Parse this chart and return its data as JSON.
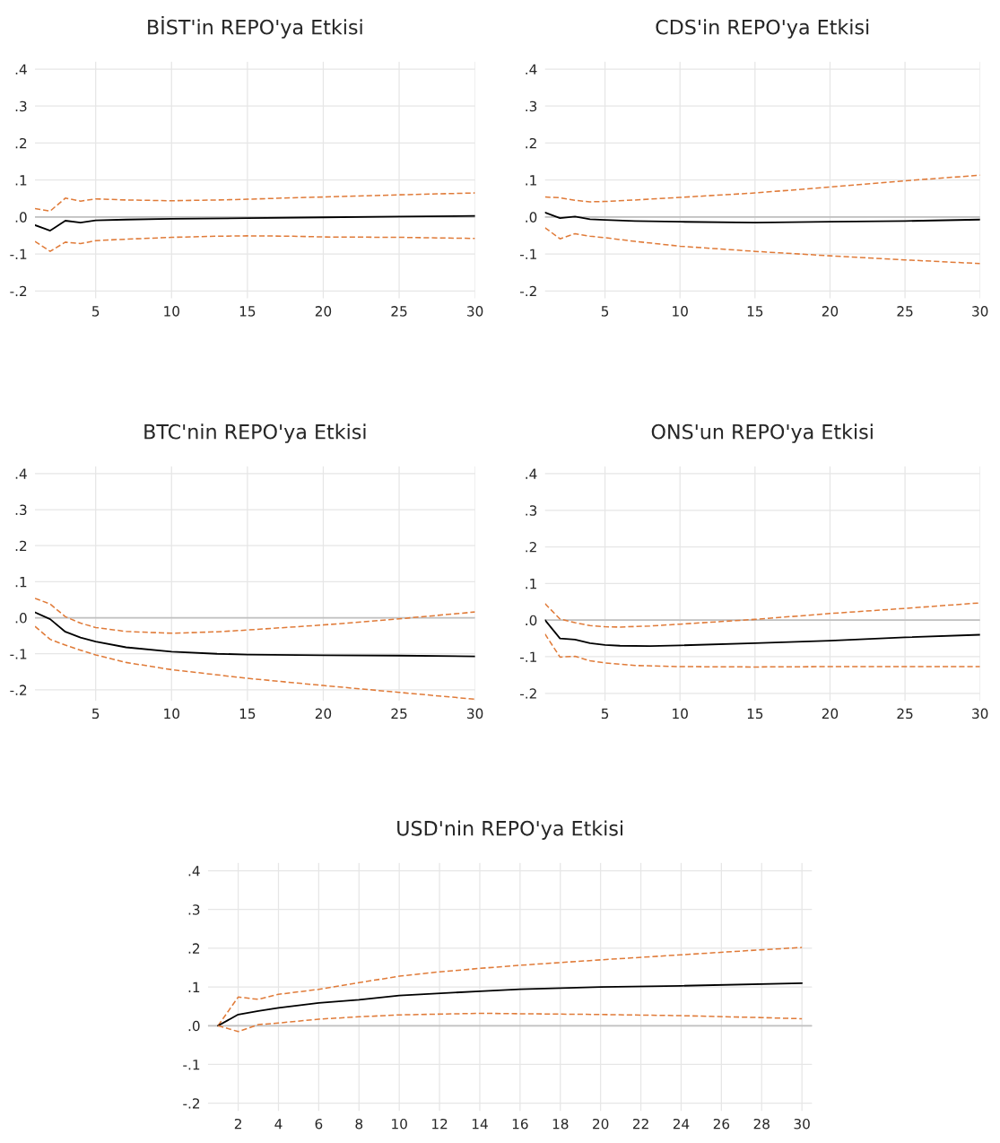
{
  "chart_data": [
    {
      "type": "line",
      "title": "BİST'in REPO'ya Etkisi",
      "xlim": [
        1,
        30
      ],
      "xticks": [
        5,
        10,
        15,
        20,
        25,
        30
      ],
      "ylim": [
        -0.22,
        0.42
      ],
      "yticks": [
        {
          "value": 0.4,
          "label": ".4"
        },
        {
          "value": 0.3,
          "label": ".3"
        },
        {
          "value": 0.2,
          "label": ".2"
        },
        {
          "value": 0.1,
          "label": ".1"
        },
        {
          "value": 0,
          "label": ".0"
        },
        {
          "value": -0.1,
          "label": "-.1"
        },
        {
          "value": -0.2,
          "label": "-.2"
        }
      ],
      "grid": true,
      "ref_lines": [
        {
          "axis": "y",
          "value": 0,
          "color": "#c0c0c0"
        }
      ],
      "series": [
        {
          "color": "#e07b39",
          "line_style": "dashed",
          "x": [
            1,
            2,
            3,
            4,
            5,
            7,
            10,
            13,
            15,
            18,
            20,
            25,
            30
          ],
          "values": [
            0.023,
            0.016,
            0.051,
            0.043,
            0.049,
            0.046,
            0.044,
            0.046,
            0.048,
            0.052,
            0.054,
            0.06,
            0.065
          ]
        },
        {
          "color": "#000000",
          "line_style": "solid",
          "x": [
            1,
            2,
            3,
            4,
            5,
            7,
            10,
            15,
            20,
            25,
            30
          ],
          "values": [
            -0.022,
            -0.037,
            -0.01,
            -0.015,
            -0.009,
            -0.007,
            -0.005,
            -0.003,
            -0.001,
            0.001,
            0.003
          ]
        },
        {
          "color": "#e07b39",
          "line_style": "dashed",
          "x": [
            1,
            2,
            3,
            4,
            5,
            7,
            10,
            13,
            15,
            18,
            20,
            25,
            30
          ],
          "values": [
            -0.066,
            -0.093,
            -0.068,
            -0.072,
            -0.064,
            -0.06,
            -0.055,
            -0.052,
            -0.051,
            -0.052,
            -0.054,
            -0.055,
            -0.058
          ]
        }
      ]
    },
    {
      "type": "line",
      "title": "CDS'in REPO'ya Etkisi",
      "xlim": [
        1,
        30
      ],
      "xticks": [
        5,
        10,
        15,
        20,
        25,
        30
      ],
      "ylim": [
        -0.22,
        0.42
      ],
      "yticks": [
        {
          "value": 0.4,
          "label": ".4"
        },
        {
          "value": 0.3,
          "label": ".3"
        },
        {
          "value": 0.2,
          "label": ".2"
        },
        {
          "value": 0.1,
          "label": ".1"
        },
        {
          "value": 0,
          "label": ".0"
        },
        {
          "value": -0.1,
          "label": "-.1"
        },
        {
          "value": -0.2,
          "label": "-.2"
        }
      ],
      "grid": true,
      "ref_lines": [
        {
          "axis": "y",
          "value": 0,
          "color": "#c0c0c0"
        }
      ],
      "series": [
        {
          "color": "#e07b39",
          "line_style": "dashed",
          "x": [
            1,
            2,
            3,
            4,
            5,
            7,
            10,
            15,
            20,
            25,
            30
          ],
          "values": [
            0.054,
            0.052,
            0.045,
            0.041,
            0.042,
            0.046,
            0.053,
            0.065,
            0.081,
            0.098,
            0.113
          ]
        },
        {
          "color": "#000000",
          "line_style": "solid",
          "x": [
            1,
            2,
            3,
            4,
            5,
            7,
            10,
            15,
            20,
            25,
            30
          ],
          "values": [
            0.012,
            -0.003,
            0.001,
            -0.006,
            -0.008,
            -0.011,
            -0.013,
            -0.015,
            -0.013,
            -0.011,
            -0.007
          ]
        },
        {
          "color": "#e07b39",
          "line_style": "dashed",
          "x": [
            1,
            2,
            3,
            4,
            5,
            7,
            10,
            15,
            20,
            25,
            30
          ],
          "values": [
            -0.029,
            -0.059,
            -0.045,
            -0.052,
            -0.056,
            -0.066,
            -0.079,
            -0.093,
            -0.105,
            -0.116,
            -0.126
          ]
        }
      ]
    },
    {
      "type": "line",
      "title": "BTC'nin REPO'ya Etkisi",
      "xlim": [
        1,
        30
      ],
      "xticks": [
        5,
        10,
        15,
        20,
        25,
        30
      ],
      "ylim": [
        -0.23,
        0.42
      ],
      "yticks": [
        {
          "value": 0.4,
          "label": ".4"
        },
        {
          "value": 0.3,
          "label": ".3"
        },
        {
          "value": 0.2,
          "label": ".2"
        },
        {
          "value": 0.1,
          "label": ".1"
        },
        {
          "value": 0,
          "label": ".0"
        },
        {
          "value": -0.1,
          "label": "-.1"
        },
        {
          "value": -0.2,
          "label": "-.2"
        }
      ],
      "grid": true,
      "ref_lines": [
        {
          "axis": "y",
          "value": 0,
          "color": "#c0c0c0"
        }
      ],
      "series": [
        {
          "color": "#e07b39",
          "line_style": "dashed",
          "x": [
            1,
            2,
            3,
            4,
            5,
            7,
            10,
            13,
            15,
            20,
            25,
            30
          ],
          "values": [
            0.054,
            0.038,
            0.003,
            -0.015,
            -0.027,
            -0.038,
            -0.043,
            -0.039,
            -0.034,
            -0.02,
            -0.003,
            0.016
          ]
        },
        {
          "color": "#000000",
          "line_style": "solid",
          "x": [
            1,
            2,
            3,
            4,
            5,
            7,
            10,
            13,
            15,
            20,
            25,
            30
          ],
          "values": [
            0.015,
            -0.004,
            -0.039,
            -0.055,
            -0.066,
            -0.082,
            -0.094,
            -0.1,
            -0.102,
            -0.104,
            -0.105,
            -0.107
          ]
        },
        {
          "color": "#e07b39",
          "line_style": "dashed",
          "x": [
            1,
            2,
            3,
            4,
            5,
            7,
            10,
            15,
            20,
            25,
            30
          ],
          "values": [
            -0.024,
            -0.06,
            -0.076,
            -0.09,
            -0.103,
            -0.124,
            -0.144,
            -0.168,
            -0.188,
            -0.207,
            -0.226
          ]
        }
      ]
    },
    {
      "type": "line",
      "title": "ONS'un REPO'ya Etkisi",
      "xlim": [
        1,
        30
      ],
      "xticks": [
        5,
        10,
        15,
        20,
        25,
        30
      ],
      "ylim": [
        -0.22,
        0.42
      ],
      "yticks": [
        {
          "value": 0.4,
          "label": ".4"
        },
        {
          "value": 0.3,
          "label": ".3"
        },
        {
          "value": 0.2,
          "label": ".2"
        },
        {
          "value": 0.1,
          "label": ".1"
        },
        {
          "value": 0,
          "label": ".0"
        },
        {
          "value": -0.1,
          "label": "-.1"
        },
        {
          "value": -0.2,
          "label": "-.2"
        }
      ],
      "grid": true,
      "ref_lines": [
        {
          "axis": "y",
          "value": 0,
          "color": "#c0c0c0"
        }
      ],
      "series": [
        {
          "color": "#e07b39",
          "line_style": "dashed",
          "x": [
            1,
            2,
            3,
            4,
            5,
            6,
            8,
            10,
            15,
            20,
            25,
            30
          ],
          "values": [
            0.045,
            0.003,
            -0.007,
            -0.015,
            -0.018,
            -0.019,
            -0.016,
            -0.011,
            0.002,
            0.018,
            0.032,
            0.047
          ]
        },
        {
          "color": "#000000",
          "line_style": "solid",
          "x": [
            1,
            2,
            3,
            4,
            5,
            6,
            8,
            10,
            15,
            20,
            25,
            30
          ],
          "values": [
            0.0,
            -0.05,
            -0.053,
            -0.063,
            -0.068,
            -0.07,
            -0.071,
            -0.069,
            -0.063,
            -0.056,
            -0.047,
            -0.04
          ]
        },
        {
          "color": "#e07b39",
          "line_style": "dashed",
          "x": [
            1,
            2,
            3,
            4,
            5,
            7,
            10,
            15,
            20,
            25,
            30
          ],
          "values": [
            -0.038,
            -0.101,
            -0.099,
            -0.111,
            -0.117,
            -0.124,
            -0.127,
            -0.128,
            -0.127,
            -0.127,
            -0.127
          ]
        }
      ]
    },
    {
      "type": "line",
      "title": "USD'nin REPO'ya Etkisi",
      "xlim": [
        0.5,
        30.5
      ],
      "xticks": [
        2,
        4,
        6,
        8,
        10,
        12,
        14,
        16,
        18,
        20,
        22,
        24,
        26,
        28,
        30
      ],
      "ylim": [
        -0.22,
        0.42
      ],
      "yticks": [
        {
          "value": 0.4,
          "label": ".4"
        },
        {
          "value": 0.3,
          "label": ".3"
        },
        {
          "value": 0.2,
          "label": ".2"
        },
        {
          "value": 0.1,
          "label": ".1"
        },
        {
          "value": 0,
          "label": ".0"
        },
        {
          "value": -0.1,
          "label": "-.1"
        },
        {
          "value": -0.2,
          "label": "-.2"
        }
      ],
      "grid": true,
      "ref_lines": [
        {
          "axis": "y",
          "value": 0,
          "color": "#c0c0c0"
        }
      ],
      "series": [
        {
          "color": "#e07b39",
          "line_style": "dashed",
          "x": [
            1,
            2,
            3,
            4,
            6,
            8,
            10,
            12,
            14,
            16,
            20,
            24,
            28,
            30
          ],
          "values": [
            0.0,
            0.074,
            0.068,
            0.081,
            0.094,
            0.111,
            0.128,
            0.139,
            0.148,
            0.156,
            0.17,
            0.183,
            0.196,
            0.202
          ]
        },
        {
          "color": "#000000",
          "line_style": "solid",
          "x": [
            1,
            2,
            3,
            4,
            6,
            8,
            10,
            14,
            16,
            20,
            24,
            30
          ],
          "values": [
            0.0,
            0.029,
            0.038,
            0.046,
            0.059,
            0.067,
            0.078,
            0.089,
            0.094,
            0.1,
            0.103,
            0.11
          ]
        },
        {
          "color": "#e07b39",
          "line_style": "dashed",
          "x": [
            1,
            2,
            3,
            4,
            6,
            8,
            10,
            14,
            16,
            20,
            24,
            28,
            30
          ],
          "values": [
            0.0,
            -0.015,
            0.003,
            0.007,
            0.017,
            0.023,
            0.028,
            0.032,
            0.031,
            0.029,
            0.026,
            0.021,
            0.018
          ]
        }
      ]
    }
  ]
}
